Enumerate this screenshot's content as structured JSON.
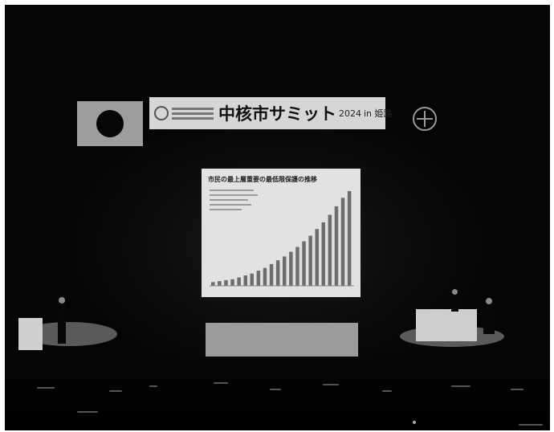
{
  "scene": {
    "banner": {
      "title": "中核市サミット",
      "year": "2024",
      "city": "in 姫路"
    },
    "screen": {
      "title": "市民の最上層重要の最低限保護の推移",
      "chart_bars": [
        0.04,
        0.05,
        0.06,
        0.07,
        0.09,
        0.11,
        0.13,
        0.16,
        0.19,
        0.23,
        0.27,
        0.31,
        0.36,
        0.41,
        0.47,
        0.53,
        0.6,
        0.67,
        0.75,
        0.84,
        0.93,
        1.0
      ]
    },
    "flag": "japan-flag",
    "emblem": "city-emblem",
    "colors": {
      "background": "#0b0b0b",
      "screen": "#e2e2e2",
      "banner": "#d6d6d6"
    }
  }
}
